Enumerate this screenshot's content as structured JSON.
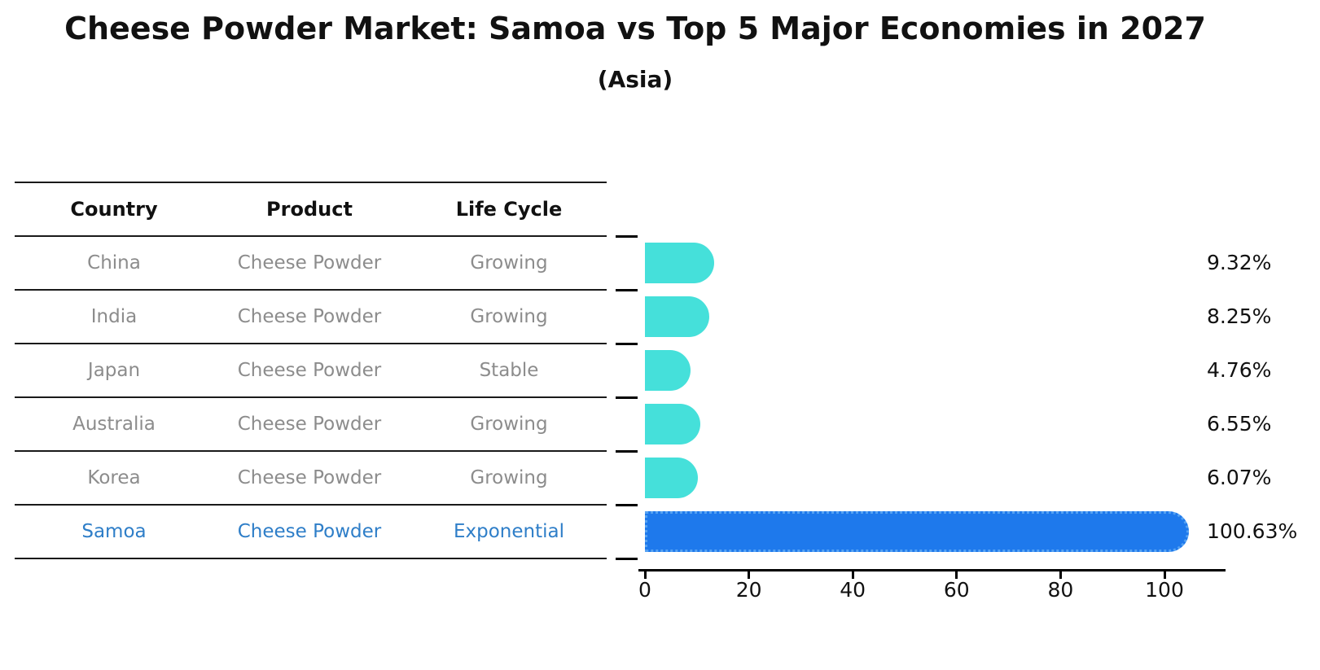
{
  "title": "Cheese Powder Market: Samoa vs Top 5 Major Economies in 2027",
  "subtitle": "(Asia)",
  "table": {
    "headers": [
      "Country",
      "Product",
      "Life Cycle"
    ],
    "rows": [
      {
        "country": "China",
        "product": "Cheese Powder",
        "life_cycle": "Growing",
        "highlighted": false
      },
      {
        "country": "India",
        "product": "Cheese Powder",
        "life_cycle": "Growing",
        "highlighted": false
      },
      {
        "country": "Japan",
        "product": "Cheese Powder",
        "life_cycle": "Stable",
        "highlighted": false
      },
      {
        "country": "Australia",
        "product": "Cheese Powder",
        "life_cycle": "Growing",
        "highlighted": false
      },
      {
        "country": "Korea",
        "product": "Cheese Powder",
        "life_cycle": "Growing",
        "highlighted": false
      },
      {
        "country": "Samoa",
        "product": "Cheese Powder",
        "life_cycle": "Exponential",
        "highlighted": true
      }
    ]
  },
  "chart_data": {
    "type": "bar",
    "orientation": "horizontal",
    "categories": [
      "China",
      "India",
      "Japan",
      "Australia",
      "Korea",
      "Samoa"
    ],
    "values": [
      9.32,
      8.25,
      4.76,
      6.55,
      6.07,
      100.63
    ],
    "value_labels": [
      "9.32%",
      "8.25%",
      "4.76%",
      "6.55%",
      "6.07%",
      "100.63%"
    ],
    "highlight_index": 5,
    "x_ticks": [
      0,
      20,
      40,
      60,
      80,
      100
    ],
    "xlim": [
      0,
      111
    ],
    "grid": false,
    "legend": null,
    "value_label_position": "right-of-plot"
  },
  "colors": {
    "bar_default": "#45e0da",
    "bar_highlight": "#1e79ec",
    "bar_highlight_edge": "#56a2f2",
    "row_text": "#8c8c8c",
    "highlight_text": "#2e7ec8",
    "header_text": "#111111",
    "line": "#1a1a1a"
  }
}
